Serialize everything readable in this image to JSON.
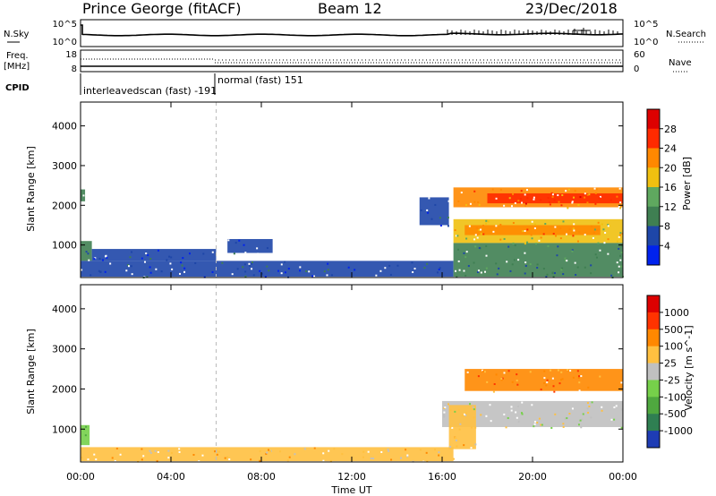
{
  "header": {
    "station": "Prince George (fitACF)",
    "beam": "Beam 12",
    "date": "23/Dec/2018"
  },
  "nsky_panel": {
    "left_label": "N.Sky",
    "left_ticks": [
      "10^5",
      "10^0"
    ],
    "right_ticks": [
      "10^5",
      "10^0"
    ],
    "right_label": "N.Search"
  },
  "freq_panel": {
    "left_label_1": "Freq.",
    "left_label_2": "[MHz]",
    "left_ticks": [
      "18",
      "8"
    ],
    "right_ticks": [
      "60",
      "0"
    ],
    "right_label": "Nave"
  },
  "cpid_panel": {
    "label": "CPID",
    "mode_1": "interleavedscan (fast) -191",
    "mode_2": "normal (fast) 151"
  },
  "chart_data": [
    {
      "type": "heatmap",
      "name": "power",
      "ylabel": "Slant Range [km]",
      "ylim": [
        180,
        4600
      ],
      "yticks": [
        "1000",
        "2000",
        "3000",
        "4000"
      ],
      "xlabel": "Time UT",
      "xlim": [
        0,
        24
      ],
      "xticks": [
        "00:00",
        "04:00",
        "08:00",
        "12:00",
        "16:00",
        "20:00",
        "00:00"
      ],
      "marker_time_hours": 6,
      "colorbar": {
        "label": "Power [dB]",
        "ticks": [
          "28",
          "24",
          "20",
          "16",
          "12",
          "8",
          "4"
        ],
        "colors": [
          "#0022ee",
          "#1e46a8",
          "#3f7f52",
          "#5fa85f",
          "#f0c010",
          "#ff8800",
          "#ff2a00",
          "#dd0000"
        ]
      },
      "regions": [
        {
          "t0": 0.0,
          "t1": 0.2,
          "r0": 2100,
          "r1": 2400,
          "level": 2
        },
        {
          "t0": 0.0,
          "t1": 0.5,
          "r0": 600,
          "r1": 1100,
          "level": 2
        },
        {
          "t0": 0.0,
          "t1": 16.5,
          "r0": 200,
          "r1": 600,
          "level": 1
        },
        {
          "t0": 0.5,
          "t1": 6.0,
          "r0": 600,
          "r1": 900,
          "level": 1
        },
        {
          "t0": 6.5,
          "t1": 8.5,
          "r0": 800,
          "r1": 1150,
          "level": 1
        },
        {
          "t0": 15.0,
          "t1": 16.3,
          "r0": 1500,
          "r1": 2200,
          "level": 1
        },
        {
          "t0": 16.5,
          "t1": 24.0,
          "r0": 1950,
          "r1": 2450,
          "level": 5
        },
        {
          "t0": 18.0,
          "t1": 24.0,
          "r0": 2050,
          "r1": 2300,
          "level": 6
        },
        {
          "t0": 16.5,
          "t1": 24.0,
          "r0": 1050,
          "r1": 1650,
          "level": 4
        },
        {
          "t0": 17.0,
          "t1": 23.0,
          "r0": 1250,
          "r1": 1500,
          "level": 5
        },
        {
          "t0": 16.5,
          "t1": 24.0,
          "r0": 200,
          "r1": 1050,
          "level": 2
        }
      ]
    },
    {
      "type": "heatmap",
      "name": "velocity",
      "ylabel": "Slant Range [km]",
      "ylim": [
        180,
        4600
      ],
      "yticks": [
        "1000",
        "2000",
        "3000",
        "4000"
      ],
      "xlabel": "Time UT",
      "xlim": [
        0,
        24
      ],
      "xticks": [
        "00:00",
        "04:00",
        "08:00",
        "12:00",
        "16:00",
        "20:00",
        "00:00"
      ],
      "marker_time_hours": 6,
      "colorbar": {
        "label": "Velocity [m s^-1]",
        "ticks": [
          "1000",
          "500",
          "100",
          "25",
          "-25",
          "-100",
          "-500",
          "-1000"
        ],
        "colors": [
          "#1e3cb4",
          "#2f7f52",
          "#4fa83f",
          "#76d04a",
          "#c0c0c0",
          "#ffc040",
          "#ff8800",
          "#ff3300",
          "#dd0000"
        ]
      },
      "regions": [
        {
          "t0": 0.0,
          "t1": 16.5,
          "r0": 200,
          "r1": 550,
          "level": 5
        },
        {
          "t0": 0.0,
          "t1": 0.4,
          "r0": 600,
          "r1": 1100,
          "level": 3
        },
        {
          "t0": 16.0,
          "t1": 24.0,
          "r0": 1050,
          "r1": 1700,
          "level": 4
        },
        {
          "t0": 17.0,
          "t1": 24.0,
          "r0": 1950,
          "r1": 2500,
          "level": 6
        },
        {
          "t0": 16.3,
          "t1": 17.5,
          "r0": 500,
          "r1": 1600,
          "level": 5
        }
      ]
    }
  ]
}
